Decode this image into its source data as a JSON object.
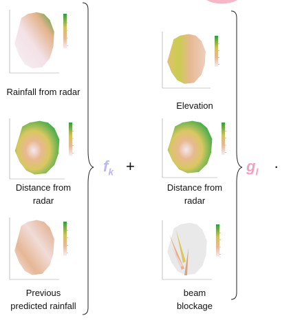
{
  "left_column": {
    "items": [
      {
        "label": "Rainfall from radar"
      },
      {
        "label": "Distance from radar"
      },
      {
        "label": "Previous predicted rainfall"
      }
    ]
  },
  "operator": {
    "f": {
      "base": "f",
      "sub": "k"
    },
    "plus": "+",
    "g": {
      "base": "g",
      "sub": "l"
    },
    "dot": "·"
  },
  "right_column": {
    "items": [
      {
        "label": "Elevation"
      },
      {
        "label": "Distance from radar"
      },
      {
        "label": "beam blockage"
      }
    ]
  }
}
